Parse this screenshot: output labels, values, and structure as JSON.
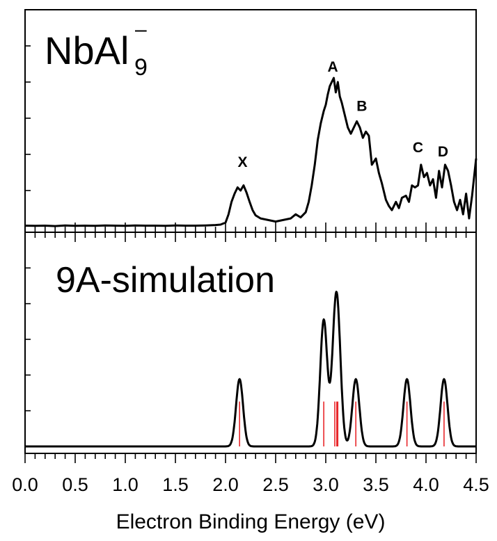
{
  "chart_data": {
    "type": "line",
    "xlabel": "Electron Binding Energy (eV)",
    "xlim": [
      0.0,
      4.5
    ],
    "x_ticks": [
      "0.0",
      "0.5",
      "1.0",
      "1.5",
      "2.0",
      "2.5",
      "3.0",
      "3.5",
      "4.0",
      "4.5"
    ],
    "panels": [
      {
        "title_main": "NbAl",
        "title_sub": "9",
        "title_sup": "–",
        "ylim": [
          0,
          1.05
        ],
        "peak_labels": [
          {
            "text": "X",
            "x": 2.17,
            "y": 0.29
          },
          {
            "text": "A",
            "x": 3.07,
            "y": 0.75
          },
          {
            "text": "B",
            "x": 3.36,
            "y": 0.56
          },
          {
            "text": "C",
            "x": 3.92,
            "y": 0.36
          },
          {
            "text": "D",
            "x": 4.17,
            "y": 0.34
          }
        ],
        "series": [
          {
            "x": [
              0.0,
              0.1,
              0.2,
              0.3,
              0.4,
              0.5,
              0.6,
              0.7,
              0.8,
              0.9,
              1.0,
              1.1,
              1.2,
              1.3,
              1.4,
              1.5,
              1.6,
              1.7,
              1.8,
              1.9,
              1.95,
              2.0,
              2.03,
              2.06,
              2.09,
              2.12,
              2.15,
              2.18,
              2.21,
              2.24,
              2.27,
              2.3,
              2.35,
              2.4,
              2.45,
              2.5,
              2.55,
              2.6,
              2.65,
              2.7,
              2.75,
              2.8,
              2.83,
              2.86,
              2.89,
              2.92,
              2.95,
              2.98,
              3.0,
              3.02,
              3.04,
              3.06,
              3.08,
              3.1,
              3.12,
              3.14,
              3.16,
              3.18,
              3.2,
              3.22,
              3.25,
              3.28,
              3.31,
              3.34,
              3.37,
              3.4,
              3.43,
              3.46,
              3.5,
              3.53,
              3.56,
              3.6,
              3.63,
              3.66,
              3.7,
              3.73,
              3.76,
              3.8,
              3.83,
              3.86,
              3.89,
              3.92,
              3.95,
              3.98,
              4.01,
              4.04,
              4.07,
              4.1,
              4.13,
              4.16,
              4.19,
              4.22,
              4.25,
              4.28,
              4.31,
              4.34,
              4.37,
              4.4,
              4.43,
              4.46,
              4.5
            ],
            "y": [
              0.005,
              0.004,
              0.005,
              0.003,
              0.006,
              0.004,
              0.005,
              0.004,
              0.006,
              0.005,
              0.004,
              0.006,
              0.005,
              0.005,
              0.004,
              0.006,
              0.005,
              0.005,
              0.006,
              0.008,
              0.01,
              0.02,
              0.06,
              0.12,
              0.16,
              0.19,
              0.175,
              0.2,
              0.165,
              0.12,
              0.08,
              0.055,
              0.04,
              0.035,
              0.03,
              0.025,
              0.03,
              0.035,
              0.04,
              0.06,
              0.045,
              0.07,
              0.12,
              0.2,
              0.3,
              0.42,
              0.5,
              0.56,
              0.59,
              0.64,
              0.68,
              0.7,
              0.72,
              0.65,
              0.7,
              0.63,
              0.6,
              0.56,
              0.52,
              0.48,
              0.45,
              0.48,
              0.51,
              0.48,
              0.43,
              0.46,
              0.44,
              0.3,
              0.33,
              0.26,
              0.21,
              0.13,
              0.1,
              0.08,
              0.12,
              0.09,
              0.14,
              0.15,
              0.12,
              0.2,
              0.19,
              0.2,
              0.3,
              0.24,
              0.26,
              0.2,
              0.23,
              0.14,
              0.27,
              0.19,
              0.3,
              0.27,
              0.2,
              0.12,
              0.08,
              0.13,
              0.06,
              0.16,
              0.04,
              0.15,
              0.33
            ]
          }
        ]
      },
      {
        "title_main": "9A-simulation",
        "ylim": [
          0,
          1.05
        ],
        "series": [
          {
            "type": "gaussian_sum",
            "sigma": 0.035,
            "peaks": [
              {
                "x": 2.14,
                "amp": 0.33
              },
              {
                "x": 2.98,
                "amp": 0.62
              },
              {
                "x": 3.09,
                "amp": 0.38
              },
              {
                "x": 3.12,
                "amp": 0.45
              },
              {
                "x": 3.3,
                "amp": 0.33
              },
              {
                "x": 3.81,
                "amp": 0.33
              },
              {
                "x": 4.18,
                "amp": 0.33
              }
            ]
          }
        ],
        "sticks": [
          {
            "x": 2.14,
            "y": 0.22
          },
          {
            "x": 2.98,
            "y": 0.22
          },
          {
            "x": 3.09,
            "y": 0.22
          },
          {
            "x": 3.11,
            "y": 0.22
          },
          {
            "x": 3.12,
            "y": 0.22
          },
          {
            "x": 3.3,
            "y": 0.22
          },
          {
            "x": 3.81,
            "y": 0.22
          },
          {
            "x": 4.18,
            "y": 0.22
          }
        ]
      }
    ],
    "colors": {
      "line": "#000000",
      "sticks": "#e8262a"
    }
  }
}
